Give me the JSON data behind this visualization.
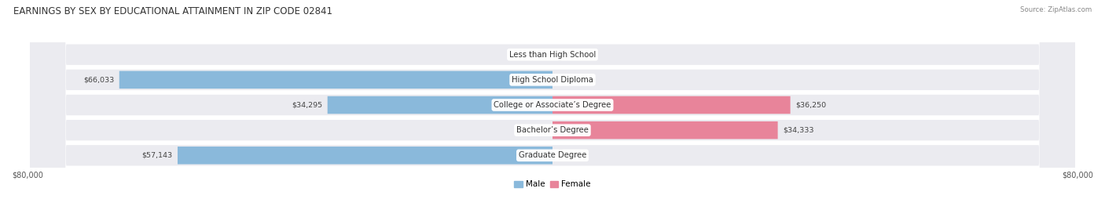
{
  "title": "EARNINGS BY SEX BY EDUCATIONAL ATTAINMENT IN ZIP CODE 02841",
  "source": "Source: ZipAtlas.com",
  "categories": [
    "Less than High School",
    "High School Diploma",
    "College or Associate’s Degree",
    "Bachelor’s Degree",
    "Graduate Degree"
  ],
  "male_values": [
    0,
    66033,
    34295,
    0,
    57143
  ],
  "female_values": [
    0,
    0,
    36250,
    34333,
    0
  ],
  "max_value": 80000,
  "male_color": "#8ab9db",
  "female_color": "#e8849a",
  "female_light_color": "#f2b8c6",
  "male_light_color": "#b8d4ea",
  "bar_bg_color": "#ebebf0",
  "title_fontsize": 8.5,
  "label_fontsize": 7.2,
  "value_fontsize": 6.8,
  "axis_label_fontsize": 7,
  "legend_fontsize": 7.5
}
